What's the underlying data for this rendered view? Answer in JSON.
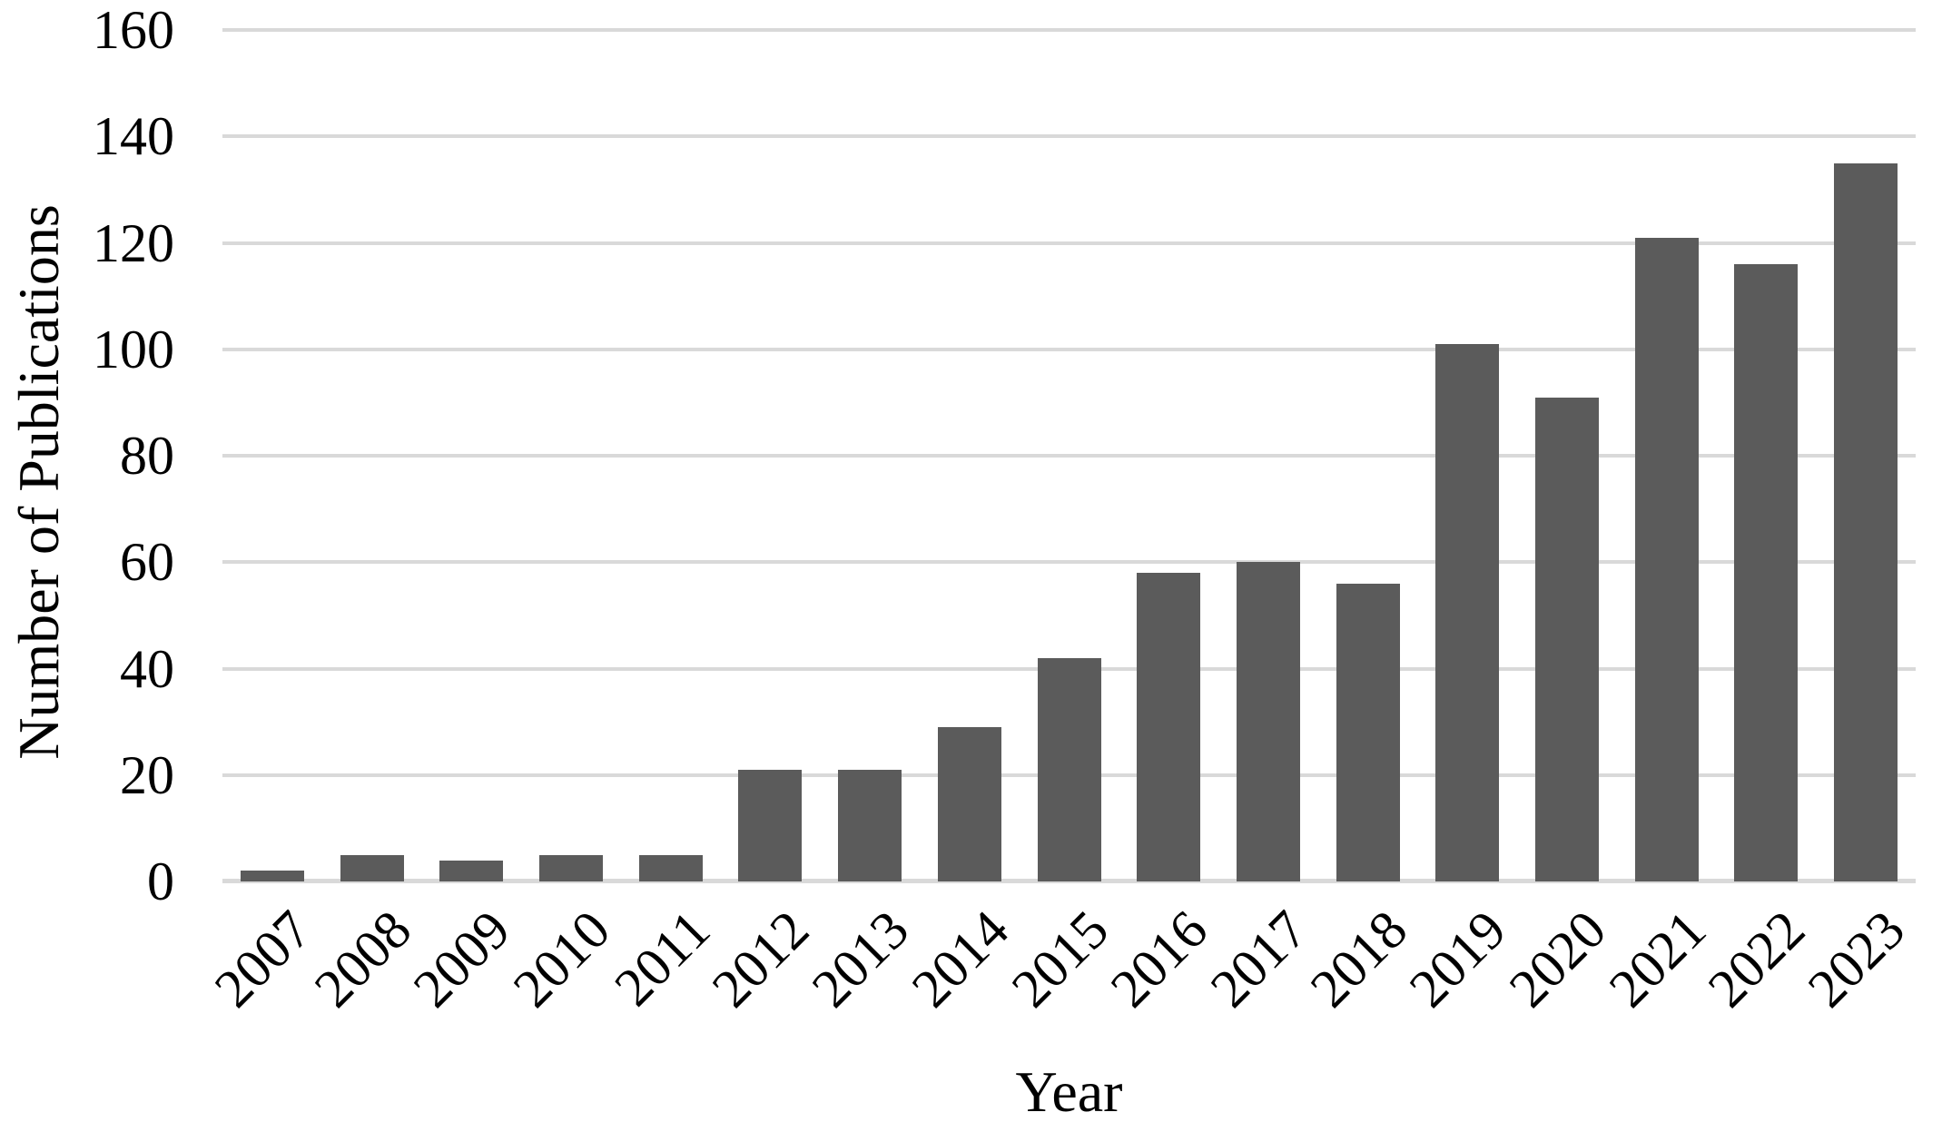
{
  "figure": {
    "background_color": "#ffffff"
  },
  "chart_data": {
    "type": "bar",
    "title": "",
    "xlabel": "Year",
    "ylabel": "Number of Publications",
    "categories": [
      "2007",
      "2008",
      "2009",
      "2010",
      "2011",
      "2012",
      "2013",
      "2014",
      "2015",
      "2016",
      "2017",
      "2018",
      "2019",
      "2020",
      "2021",
      "2022",
      "2023"
    ],
    "values": [
      2,
      5,
      4,
      5,
      5,
      21,
      21,
      29,
      42,
      58,
      60,
      56,
      101,
      91,
      121,
      116,
      135
    ],
    "ylim": [
      0,
      160
    ],
    "yticks": [
      0,
      20,
      40,
      60,
      80,
      100,
      120,
      140,
      160
    ],
    "grid": "horizontal",
    "legend": "none",
    "x_tick_rotation_deg": -45,
    "bar_color": "#5b5b5b",
    "gridline_color": "#d9d9d9",
    "axis_text_color": "#000000"
  }
}
